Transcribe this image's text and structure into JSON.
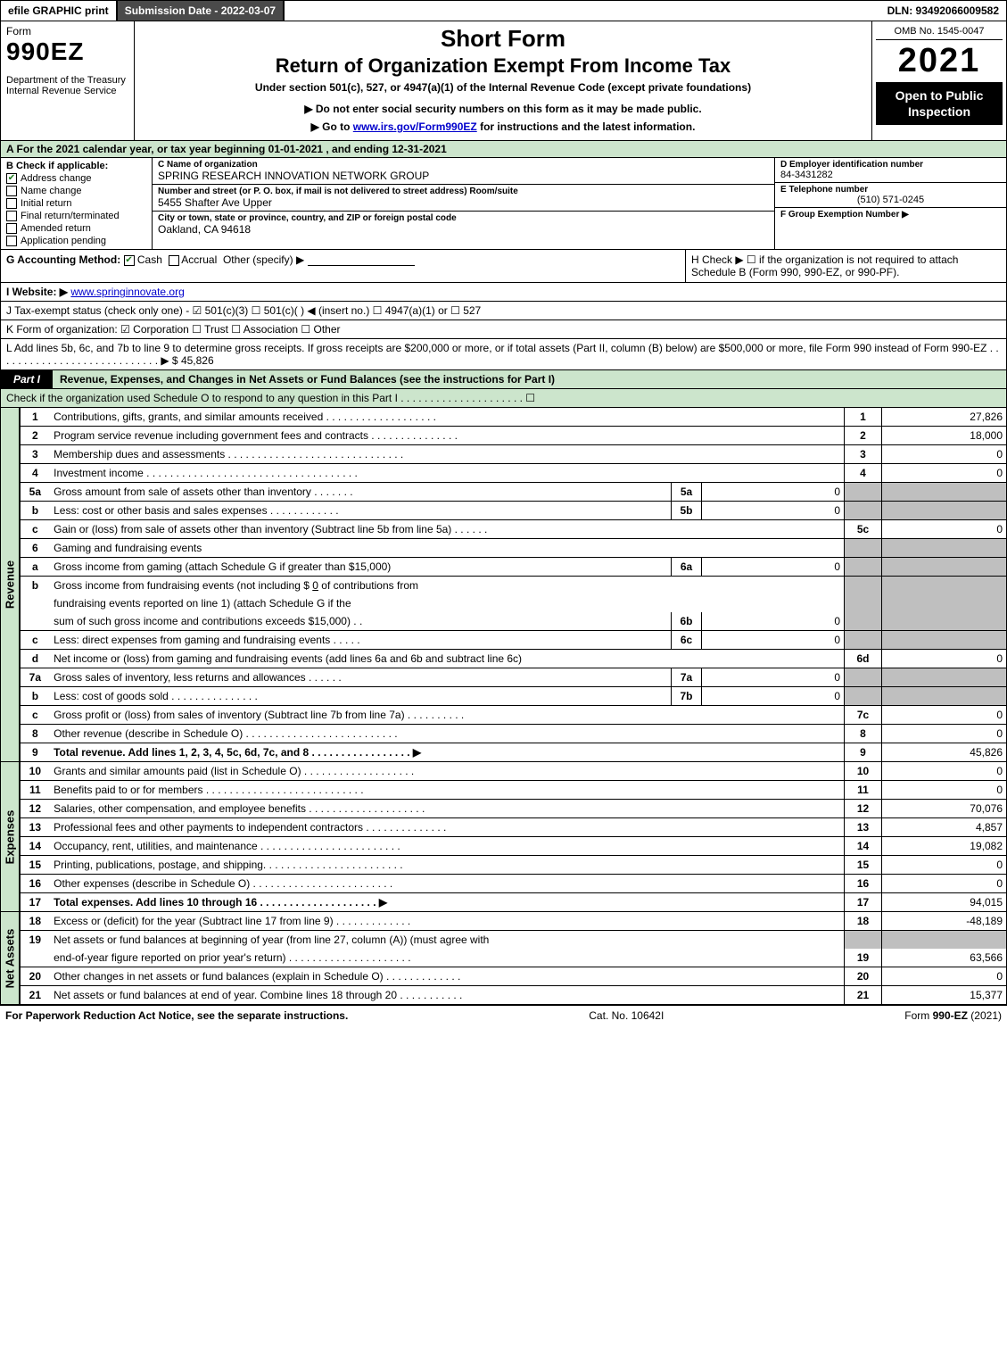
{
  "topbar": {
    "efile": "efile GRAPHIC print",
    "submission": "Submission Date - 2022-03-07",
    "dln": "DLN: 93492066009582"
  },
  "header": {
    "form_word": "Form",
    "form_num": "990EZ",
    "dept": "Department of the Treasury\nInternal Revenue Service",
    "short": "Short Form",
    "ret": "Return of Organization Exempt From Income Tax",
    "under": "Under section 501(c), 527, or 4947(a)(1) of the Internal Revenue Code (except private foundations)",
    "note1_prefix": "▶ Do not enter social security numbers on this form as it may be made public.",
    "note2_prefix": "▶ Go to ",
    "note2_link": "www.irs.gov/Form990EZ",
    "note2_suffix": " for instructions and the latest information.",
    "omb": "OMB No. 1545-0047",
    "year": "2021",
    "open": "Open to Public Inspection"
  },
  "rowA": "A  For the 2021 calendar year, or tax year beginning 01-01-2021 , and ending 12-31-2021",
  "colB": {
    "hdr": "B  Check if applicable:",
    "items": [
      {
        "label": "Address change",
        "checked": true
      },
      {
        "label": "Name change",
        "checked": false
      },
      {
        "label": "Initial return",
        "checked": false
      },
      {
        "label": "Final return/terminated",
        "checked": false
      },
      {
        "label": "Amended return",
        "checked": false
      },
      {
        "label": "Application pending",
        "checked": false
      }
    ]
  },
  "colC": {
    "name_lbl": "C Name of organization",
    "name": "SPRING RESEARCH INNOVATION NETWORK GROUP",
    "addr_lbl": "Number and street (or P. O. box, if mail is not delivered to street address)       Room/suite",
    "addr": "5455 Shafter Ave Upper",
    "city_lbl": "City or town, state or province, country, and ZIP or foreign postal code",
    "city": "Oakland, CA  94618"
  },
  "colD": {
    "ein_lbl": "D Employer identification number",
    "ein": "84-3431282",
    "phone_lbl": "E Telephone number",
    "phone": "(510) 571-0245",
    "grp_lbl": "F Group Exemption Number   ▶"
  },
  "rowG": {
    "left_prefix": "G Accounting Method:   ",
    "cash": "Cash",
    "accrual": "Accrual",
    "other": "Other (specify) ▶",
    "right": "H  Check ▶  ☐  if the organization is not required to attach Schedule B (Form 990, 990-EZ, or 990-PF)."
  },
  "rowI": {
    "label": "I Website: ▶",
    "url": "www.springinnovate.org"
  },
  "rowJ": "J Tax-exempt status (check only one) -  ☑ 501(c)(3)  ☐ 501(c)(  ) ◀ (insert no.)  ☐ 4947(a)(1) or  ☐ 527",
  "rowK": "K Form of organization:   ☑ Corporation   ☐ Trust   ☐ Association   ☐ Other",
  "rowL": {
    "text": "L Add lines 5b, 6c, and 7b to line 9 to determine gross receipts. If gross receipts are $200,000 or more, or if total assets (Part II, column (B) below) are $500,000 or more, file Form 990 instead of Form 990-EZ  .  .  .  .  .  .  .  .  .  .  .  .  .  .  .  .  .  .  .  .  .  .  .  .  .  .  .  .  ▶ $",
    "val": "45,826"
  },
  "part1": {
    "tag": "Part I",
    "title": "Revenue, Expenses, and Changes in Net Assets or Fund Balances (see the instructions for Part I)",
    "sub": "Check if the organization used Schedule O to respond to any question in this Part I  .  .  .  .  .  .  .  .  .  .  .  .  .  .  .  .  .  .  .  .  .  ☐"
  },
  "revenue_label": "Revenue",
  "expenses_label": "Expenses",
  "netassets_label": "Net Assets",
  "lines": {
    "l1": {
      "n": "1",
      "d": "Contributions, gifts, grants, and similar amounts received  .  .  .  .  .  .  .  .  .  .  .  .  .  .  .  .  .  .  .",
      "num": "1",
      "v": "27,826"
    },
    "l2": {
      "n": "2",
      "d": "Program service revenue including government fees and contracts  .  .  .  .  .  .  .  .  .  .  .  .  .  .  .",
      "num": "2",
      "v": "18,000"
    },
    "l3": {
      "n": "3",
      "d": "Membership dues and assessments  .  .  .  .  .  .  .  .  .  .  .  .  .  .  .  .  .  .  .  .  .  .  .  .  .  .  .  .  .  .",
      "num": "3",
      "v": "0"
    },
    "l4": {
      "n": "4",
      "d": "Investment income  .  .  .  .  .  .  .  .  .  .  .  .  .  .  .  .  .  .  .  .  .  .  .  .  .  .  .  .  .  .  .  .  .  .  .  .",
      "num": "4",
      "v": "0"
    },
    "l5a": {
      "n": "5a",
      "d": "Gross amount from sale of assets other than inventory  .  .  .  .  .  .  .",
      "mn": "5a",
      "mv": "0"
    },
    "l5b": {
      "n": "b",
      "d": "Less: cost or other basis and sales expenses  .  .  .  .  .  .  .  .  .  .  .  .",
      "mn": "5b",
      "mv": "0"
    },
    "l5c": {
      "n": "c",
      "d": "Gain or (loss) from sale of assets other than inventory (Subtract line 5b from line 5a)  .  .  .  .  .  .",
      "num": "5c",
      "v": "0"
    },
    "l6": {
      "n": "6",
      "d": "Gaming and fundraising events"
    },
    "l6a": {
      "n": "a",
      "d": "Gross income from gaming (attach Schedule G if greater than $15,000)",
      "mn": "6a",
      "mv": "0"
    },
    "l6b": {
      "n": "b",
      "d1": "Gross income from fundraising events (not including $ ",
      "d1u": "0",
      "d1s": "   of contributions from",
      "d2": "fundraising events reported on line 1) (attach Schedule G if the",
      "d3": "sum of such gross income and contributions exceeds $15,000)   .  .",
      "mn": "6b",
      "mv": "0"
    },
    "l6c": {
      "n": "c",
      "d": "Less: direct expenses from gaming and fundraising events  .  .  .  .  .",
      "mn": "6c",
      "mv": "0"
    },
    "l6d": {
      "n": "d",
      "d": "Net income or (loss) from gaming and fundraising events (add lines 6a and 6b and subtract line 6c)",
      "num": "6d",
      "v": "0"
    },
    "l7a": {
      "n": "7a",
      "d": "Gross sales of inventory, less returns and allowances  .  .  .  .  .  .",
      "mn": "7a",
      "mv": "0"
    },
    "l7b": {
      "n": "b",
      "d": "Less: cost of goods sold        .  .  .  .  .  .  .  .  .  .  .  .  .  .  .",
      "mn": "7b",
      "mv": "0"
    },
    "l7c": {
      "n": "c",
      "d": "Gross profit or (loss) from sales of inventory (Subtract line 7b from line 7a)  .  .  .  .  .  .  .  .  .  .",
      "num": "7c",
      "v": "0"
    },
    "l8": {
      "n": "8",
      "d": "Other revenue (describe in Schedule O)  .  .  .  .  .  .  .  .  .  .  .  .  .  .  .  .  .  .  .  .  .  .  .  .  .  .",
      "num": "8",
      "v": "0"
    },
    "l9": {
      "n": "9",
      "d": "Total revenue. Add lines 1, 2, 3, 4, 5c, 6d, 7c, and 8   .  .  .  .  .  .  .  .  .  .  .  .  .  .  .  .  .  ▶",
      "num": "9",
      "v": "45,826",
      "bold": true
    },
    "l10": {
      "n": "10",
      "d": "Grants and similar amounts paid (list in Schedule O)  .  .  .  .  .  .  .  .  .  .  .  .  .  .  .  .  .  .  .",
      "num": "10",
      "v": "0"
    },
    "l11": {
      "n": "11",
      "d": "Benefits paid to or for members    .  .  .  .  .  .  .  .  .  .  .  .  .  .  .  .  .  .  .  .  .  .  .  .  .  .  .",
      "num": "11",
      "v": "0"
    },
    "l12": {
      "n": "12",
      "d": "Salaries, other compensation, and employee benefits .  .  .  .  .  .  .  .  .  .  .  .  .  .  .  .  .  .  .  .",
      "num": "12",
      "v": "70,076"
    },
    "l13": {
      "n": "13",
      "d": "Professional fees and other payments to independent contractors  .  .  .  .  .  .  .  .  .  .  .  .  .  .",
      "num": "13",
      "v": "4,857"
    },
    "l14": {
      "n": "14",
      "d": "Occupancy, rent, utilities, and maintenance .  .  .  .  .  .  .  .  .  .  .  .  .  .  .  .  .  .  .  .  .  .  .  .",
      "num": "14",
      "v": "19,082"
    },
    "l15": {
      "n": "15",
      "d": "Printing, publications, postage, and shipping.  .  .  .  .  .  .  .  .  .  .  .  .  .  .  .  .  .  .  .  .  .  .  .",
      "num": "15",
      "v": "0"
    },
    "l16": {
      "n": "16",
      "d": "Other expenses (describe in Schedule O)    .  .  .  .  .  .  .  .  .  .  .  .  .  .  .  .  .  .  .  .  .  .  .  .",
      "num": "16",
      "v": "0"
    },
    "l17": {
      "n": "17",
      "d": "Total expenses. Add lines 10 through 16     .  .  .  .  .  .  .  .  .  .  .  .  .  .  .  .  .  .  .  .  ▶",
      "num": "17",
      "v": "94,015",
      "bold": true
    },
    "l18": {
      "n": "18",
      "d": "Excess or (deficit) for the year (Subtract line 17 from line 9)       .  .  .  .  .  .  .  .  .  .  .  .  .",
      "num": "18",
      "v": "-48,189"
    },
    "l19": {
      "n": "19",
      "d1": "Net assets or fund balances at beginning of year (from line 27, column (A)) (must agree with",
      "d2": "end-of-year figure reported on prior year's return) .  .  .  .  .  .  .  .  .  .  .  .  .  .  .  .  .  .  .  .  .",
      "num": "19",
      "v": "63,566"
    },
    "l20": {
      "n": "20",
      "d": "Other changes in net assets or fund balances (explain in Schedule O)  .  .  .  .  .  .  .  .  .  .  .  .  .",
      "num": "20",
      "v": "0"
    },
    "l21": {
      "n": "21",
      "d": "Net assets or fund balances at end of year. Combine lines 18 through 20  .  .  .  .  .  .  .  .  .  .  .",
      "num": "21",
      "v": "15,377"
    }
  },
  "footer": {
    "left": "For Paperwork Reduction Act Notice, see the separate instructions.",
    "mid": "Cat. No. 10642I",
    "right": "Form 990-EZ (2021)"
  },
  "colors": {
    "green": "#cce5cc",
    "grey": "#bfbfbf",
    "darkbar": "#4a4a4a",
    "link": "#0000cc"
  }
}
